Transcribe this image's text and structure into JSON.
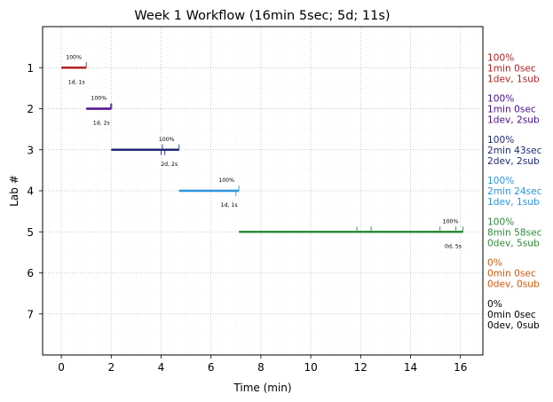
{
  "chart_data": {
    "type": "timeline",
    "title": "Week 1 Workflow (16min 5sec; 5d; 11s)",
    "xlabel": "Time (min)",
    "ylabel": "Lab #",
    "xlim": [
      -0.75,
      16.9
    ],
    "ylim": [
      8,
      0
    ],
    "xticks": [
      0,
      2,
      4,
      6,
      8,
      10,
      12,
      14,
      16
    ],
    "yticks": [
      1,
      2,
      3,
      4,
      5,
      6,
      7
    ],
    "grid": true,
    "labs": [
      {
        "lab": 1,
        "color": "#b22222",
        "start": 0.0,
        "end": 1.0,
        "submit_ticks": [
          1.0
        ],
        "completion": "100%",
        "counts": "1d, 1s",
        "summary": [
          "100%",
          "1min 0sec",
          "1dev, 1sub"
        ]
      },
      {
        "lab": 2,
        "color": "#4b0f8a",
        "start": 1.0,
        "end": 2.0,
        "submit_ticks": [
          1.98,
          2.02
        ],
        "completion": "100%",
        "counts": "1d, 2s",
        "summary": [
          "100%",
          "1min 0sec",
          "1dev, 2sub"
        ]
      },
      {
        "lab": 3,
        "color": "#1f2a78",
        "start": 2.0,
        "end": 4.72,
        "submit_ticks": [
          4.05,
          4.72
        ],
        "dev_ticks": [
          4.0,
          4.15
        ],
        "completion": "100%",
        "counts": "2d, 2s",
        "summary": [
          "100%",
          "2min 43sec",
          "2dev, 2sub"
        ]
      },
      {
        "lab": 4,
        "color": "#2a95e0",
        "start": 4.72,
        "end": 7.12,
        "submit_ticks": [
          7.12
        ],
        "dev_ticks": [
          7.0
        ],
        "completion": "100%",
        "counts": "1d, 1s",
        "summary": [
          "100%",
          "2min 24sec",
          "1dev, 1sub"
        ]
      },
      {
        "lab": 5,
        "color": "#2e8b3a",
        "start": 7.12,
        "end": 16.1,
        "submit_ticks": [
          11.85,
          12.42,
          15.18,
          15.82,
          16.1
        ],
        "completion": "100%",
        "counts": "0d, 5s",
        "summary": [
          "100%",
          "8min 58sec",
          "0dev, 5sub"
        ]
      },
      {
        "lab": 6,
        "color": "#d2580a",
        "start": null,
        "end": null,
        "submit_ticks": [],
        "completion": "",
        "counts": "",
        "summary": [
          "0%",
          "0min 0sec",
          "0dev, 0sub"
        ]
      },
      {
        "lab": 7,
        "color": "#000000",
        "start": null,
        "end": null,
        "submit_ticks": [],
        "completion": "",
        "counts": "",
        "summary": [
          "0%",
          "0min 0sec",
          "0dev, 0sub"
        ]
      }
    ]
  }
}
